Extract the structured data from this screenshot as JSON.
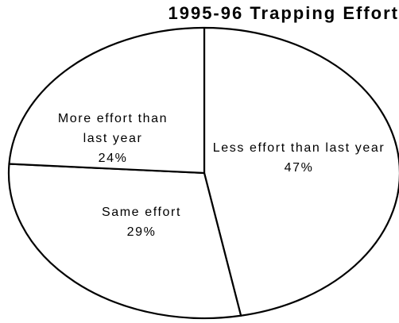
{
  "chart_data": {
    "type": "pie",
    "title": "1995-96 Trapping Effort",
    "categories": [
      "Less effort than last year",
      "Same effort",
      "More effort than last year"
    ],
    "values": [
      47,
      29,
      24
    ],
    "value_labels": [
      "47%",
      "29%",
      "24%"
    ],
    "colors": [
      "#ffffff",
      "#ffffff",
      "#ffffff"
    ]
  }
}
